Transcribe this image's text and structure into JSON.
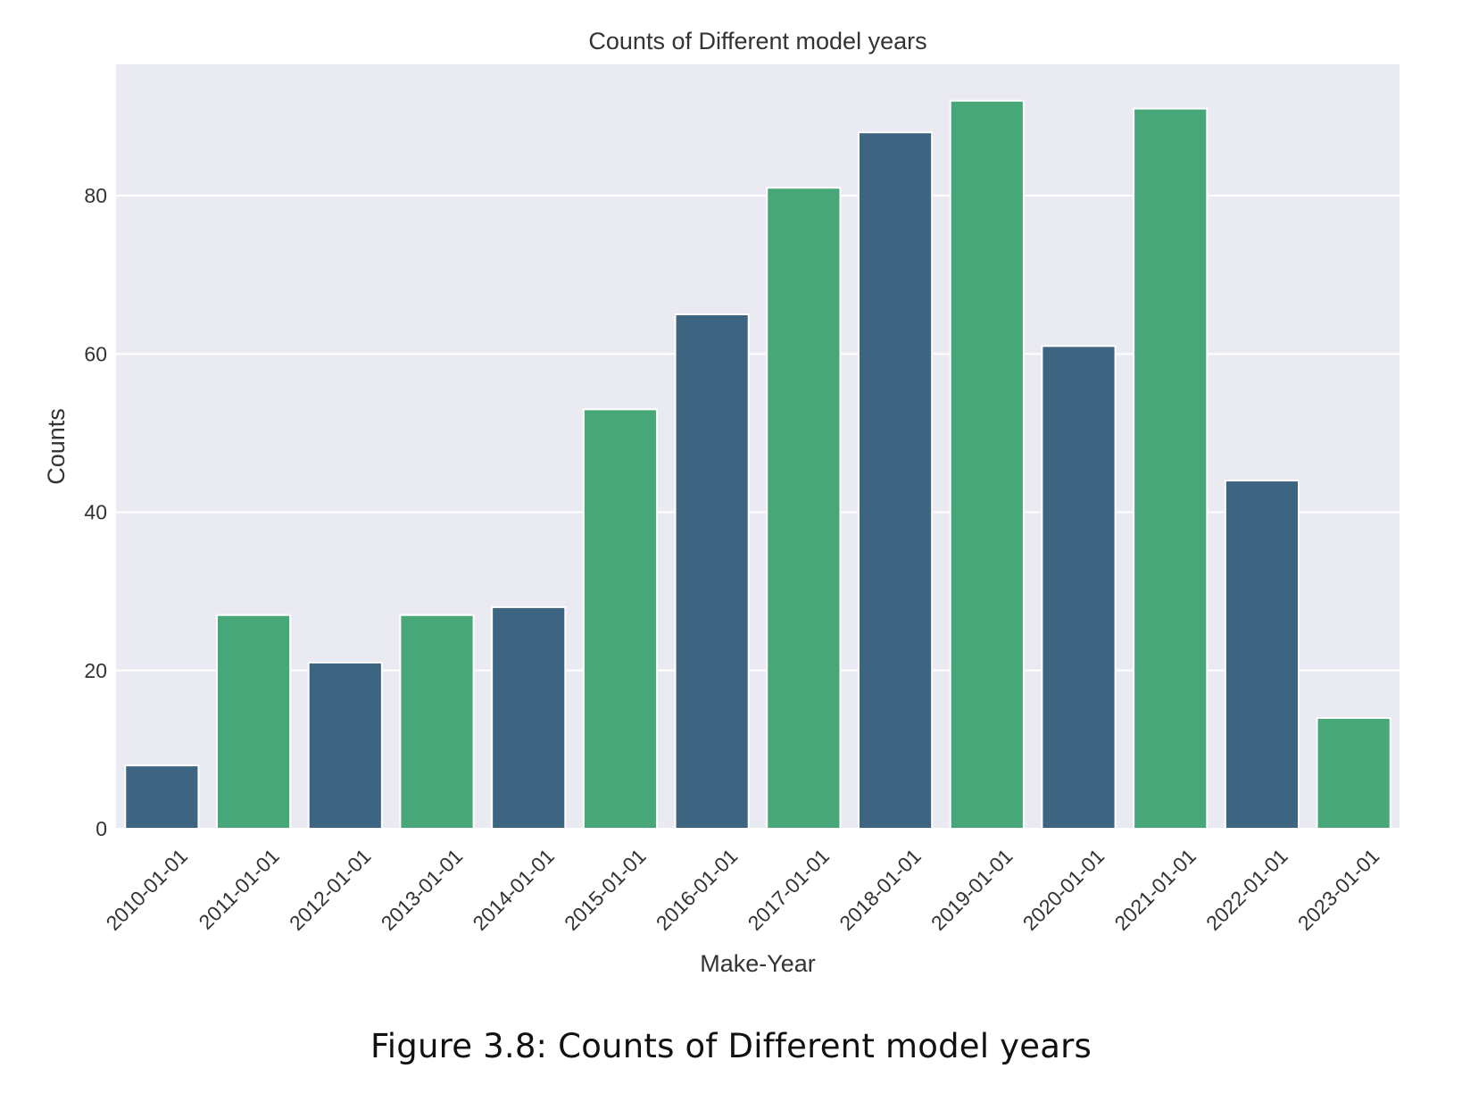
{
  "figure": {
    "caption": "Figure 3.8: Counts of Different model years"
  },
  "colors": {
    "plot_background": "#eaeaf2",
    "grid": "#ffffff",
    "bar_blue": "#3d6582",
    "bar_green": "#47a779",
    "text": "#333333"
  },
  "chart_data": {
    "type": "bar",
    "title": "Counts of Different model years",
    "xlabel": "Make-Year",
    "ylabel": "Counts",
    "categories": [
      "2010-01-01",
      "2011-01-01",
      "2012-01-01",
      "2013-01-01",
      "2014-01-01",
      "2015-01-01",
      "2016-01-01",
      "2017-01-01",
      "2018-01-01",
      "2019-01-01",
      "2020-01-01",
      "2021-01-01",
      "2022-01-01",
      "2023-01-01"
    ],
    "values": [
      8,
      27,
      21,
      27,
      28,
      53,
      65,
      81,
      88,
      92,
      61,
      91,
      44,
      14
    ],
    "bar_colors": [
      "#3d6582",
      "#47a779",
      "#3d6582",
      "#47a779",
      "#3d6582",
      "#47a779",
      "#3d6582",
      "#47a779",
      "#3d6582",
      "#47a779",
      "#3d6582",
      "#47a779",
      "#3d6582",
      "#47a779"
    ],
    "ylim": [
      0,
      96.6
    ],
    "yticks": [
      0,
      20,
      40,
      60,
      80
    ],
    "grid": true,
    "legend": "none"
  }
}
